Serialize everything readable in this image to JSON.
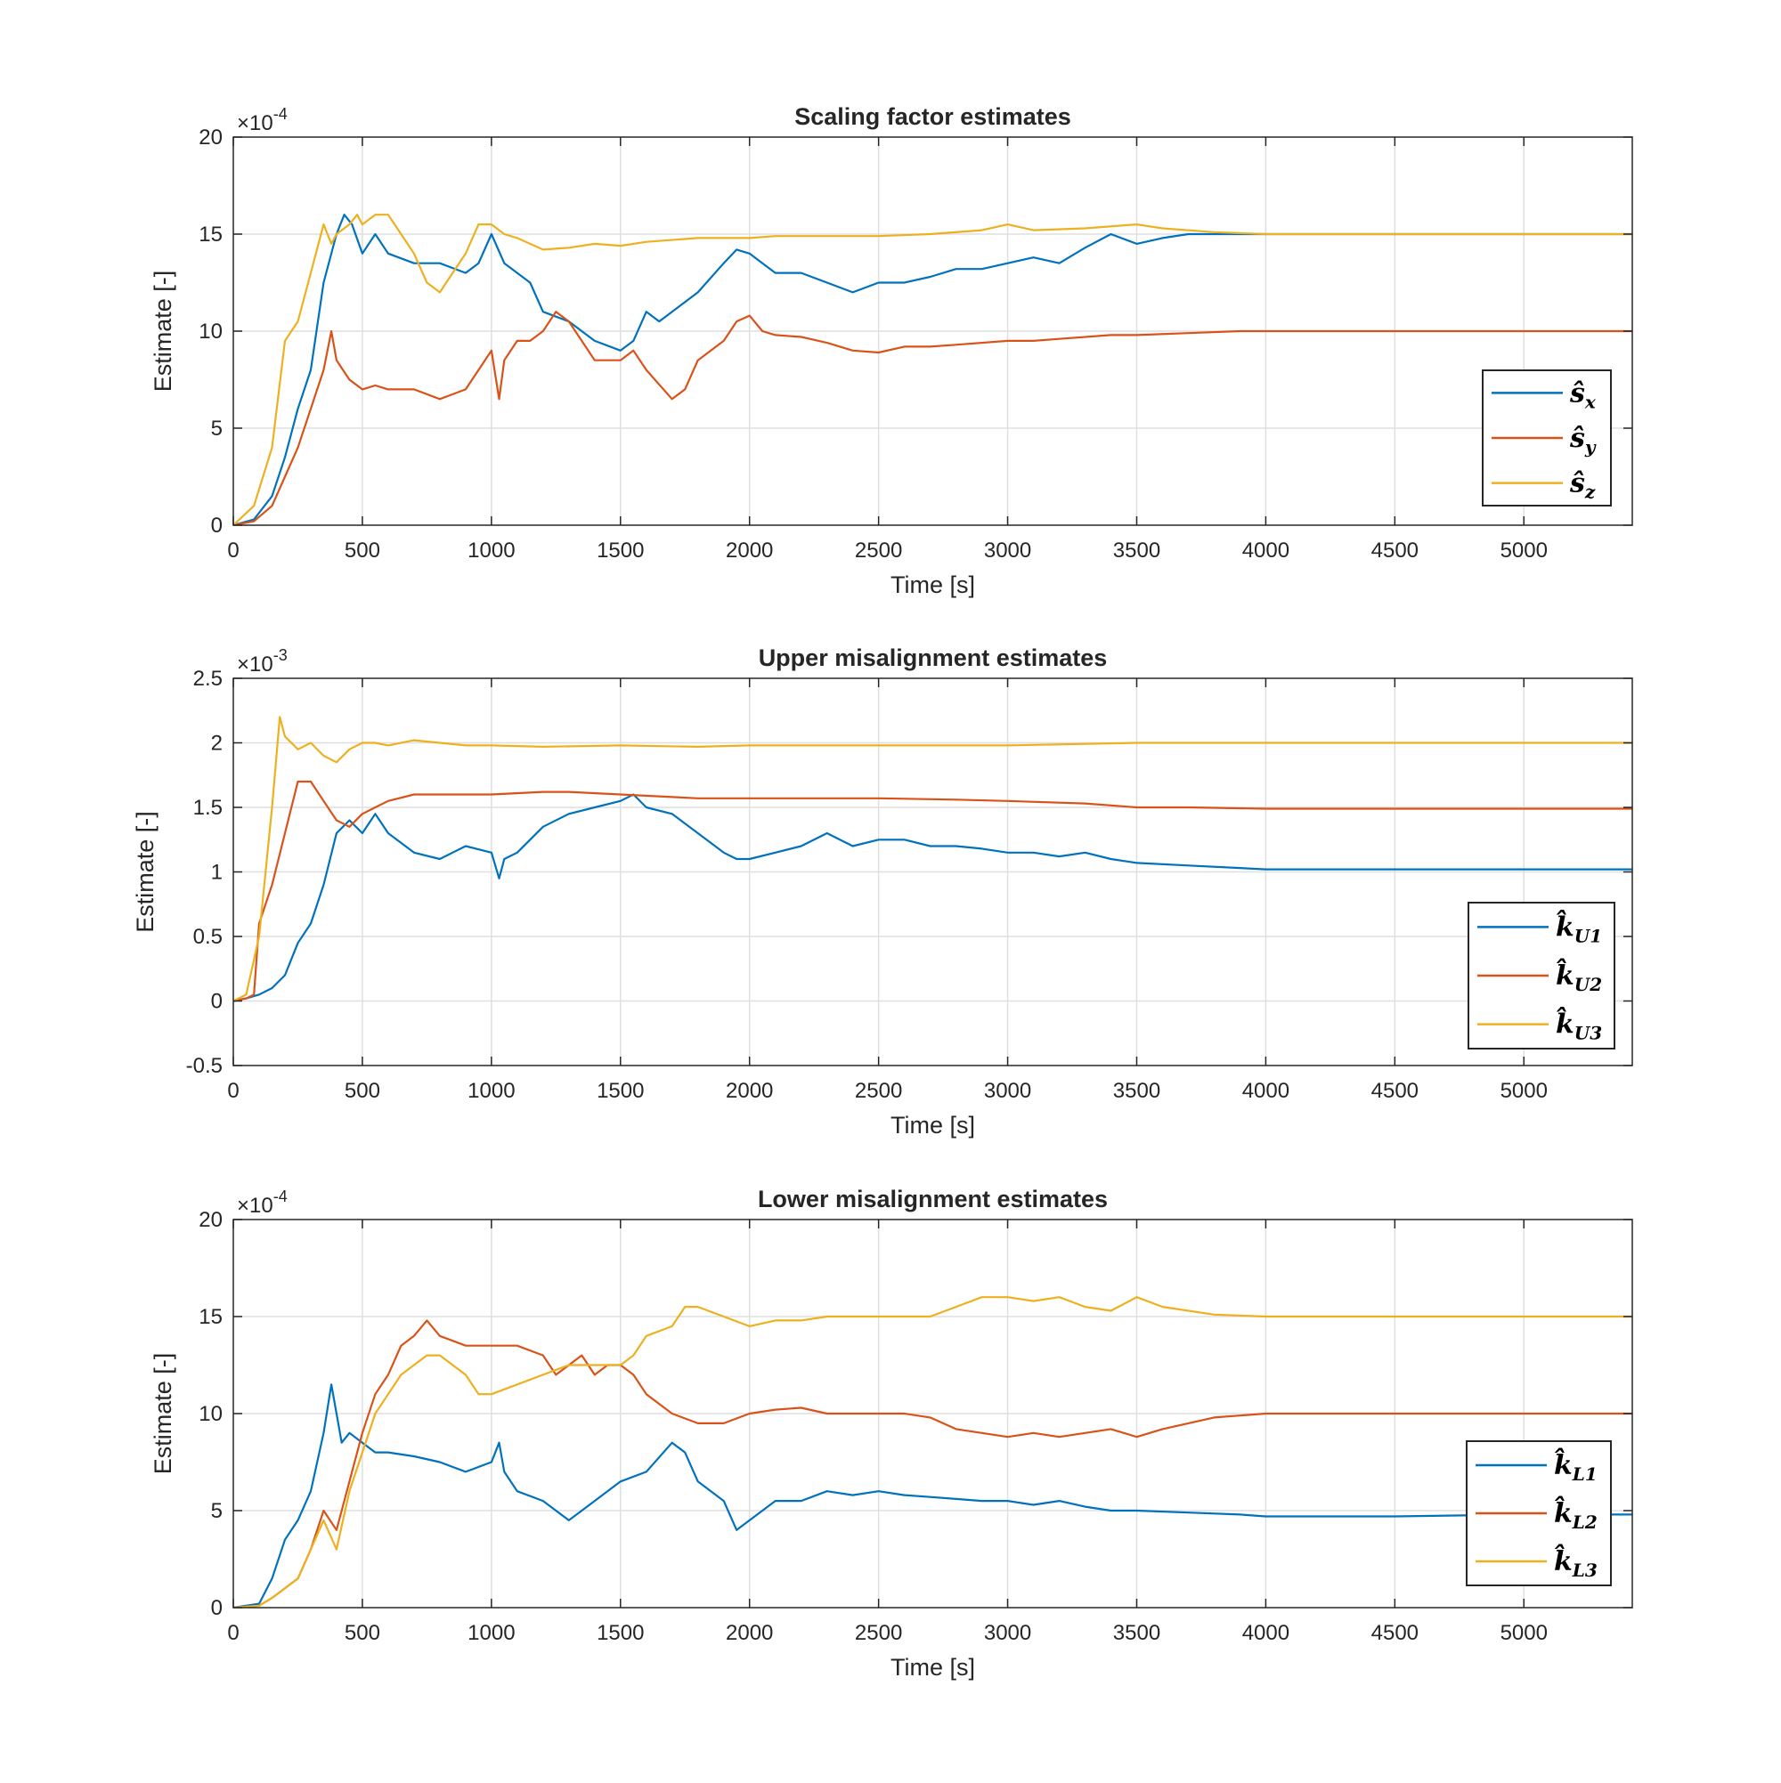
{
  "chart_data": [
    {
      "type": "line",
      "title": "Scaling factor estimates",
      "xlabel": "Time [s]",
      "ylabel": "Estimate [-]",
      "y_exponent_label": "10",
      "y_exponent": "-4",
      "xlim": [
        0,
        5420
      ],
      "ylim": [
        0,
        20
      ],
      "xticks": [
        "0",
        "500",
        "1000",
        "1500",
        "2000",
        "2500",
        "3000",
        "3500",
        "4000",
        "4500",
        "5000"
      ],
      "yticks": [
        "0",
        "5",
        "10",
        "15",
        "20"
      ],
      "grid": true,
      "legend_position": "right",
      "legend": [
        {
          "base": "ŝ",
          "sub": "x"
        },
        {
          "base": "ŝ",
          "sub": "y"
        },
        {
          "base": "ŝ",
          "sub": "z"
        }
      ],
      "series": [
        {
          "color": "#0072BD",
          "x": [
            0,
            80,
            150,
            200,
            250,
            300,
            350,
            400,
            430,
            460,
            500,
            550,
            600,
            700,
            800,
            900,
            950,
            1000,
            1050,
            1100,
            1150,
            1200,
            1300,
            1400,
            1500,
            1550,
            1600,
            1650,
            1700,
            1800,
            1900,
            1950,
            2000,
            2050,
            2100,
            2200,
            2300,
            2400,
            2500,
            2600,
            2700,
            2800,
            2900,
            3000,
            3100,
            3200,
            3300,
            3400,
            3500,
            3600,
            3700,
            3800,
            4000,
            4200,
            4500,
            5000,
            5420
          ],
          "y": [
            0,
            0.3,
            1.5,
            3.5,
            6,
            8,
            12.5,
            15,
            16,
            15.5,
            14,
            15,
            14,
            13.5,
            13.5,
            13,
            13.5,
            15,
            13.5,
            13,
            12.5,
            11,
            10.5,
            9.5,
            9,
            9.5,
            11,
            10.5,
            11,
            12,
            13.5,
            14.2,
            14,
            13.5,
            13,
            13,
            12.5,
            12,
            12.5,
            12.5,
            12.8,
            13.2,
            13.2,
            13.5,
            13.8,
            13.5,
            14.3,
            15,
            14.5,
            14.8,
            15,
            15,
            15,
            15,
            15,
            15,
            15
          ]
        },
        {
          "color": "#D95319",
          "x": [
            0,
            80,
            150,
            200,
            250,
            300,
            350,
            380,
            400,
            450,
            500,
            550,
            600,
            700,
            800,
            900,
            950,
            1000,
            1030,
            1050,
            1100,
            1150,
            1200,
            1250,
            1300,
            1350,
            1400,
            1500,
            1550,
            1600,
            1700,
            1750,
            1800,
            1900,
            1950,
            2000,
            2050,
            2100,
            2200,
            2300,
            2400,
            2500,
            2600,
            2700,
            2800,
            3000,
            3100,
            3200,
            3400,
            3500,
            3700,
            3900,
            4000,
            4500,
            5000,
            5420
          ],
          "y": [
            0,
            0.2,
            1,
            2.5,
            4,
            6,
            8,
            10,
            8.5,
            7.5,
            7,
            7.2,
            7,
            7,
            6.5,
            7,
            8,
            9,
            6.5,
            8.5,
            9.5,
            9.5,
            10,
            11,
            10.5,
            9.5,
            8.5,
            8.5,
            9,
            8,
            6.5,
            7,
            8.5,
            9.5,
            10.5,
            10.8,
            10,
            9.8,
            9.7,
            9.4,
            9,
            8.9,
            9.2,
            9.2,
            9.3,
            9.5,
            9.5,
            9.6,
            9.8,
            9.8,
            9.9,
            10,
            10,
            10,
            10,
            10
          ]
        },
        {
          "color": "#EDB120",
          "x": [
            0,
            80,
            150,
            200,
            250,
            300,
            350,
            380,
            400,
            450,
            480,
            500,
            550,
            600,
            700,
            750,
            800,
            850,
            900,
            950,
            1000,
            1050,
            1100,
            1150,
            1200,
            1300,
            1400,
            1500,
            1600,
            1800,
            2000,
            2100,
            2300,
            2500,
            2700,
            2900,
            3000,
            3100,
            3300,
            3500,
            3600,
            3800,
            4000,
            4500,
            5000,
            5420
          ],
          "y": [
            0,
            1,
            4,
            9.5,
            10.5,
            13,
            15.5,
            14.5,
            15,
            15.5,
            16,
            15.5,
            16,
            16,
            14,
            12.5,
            12,
            13,
            14,
            15.5,
            15.5,
            15,
            14.8,
            14.5,
            14.2,
            14.3,
            14.5,
            14.4,
            14.6,
            14.8,
            14.8,
            14.9,
            14.9,
            14.9,
            15,
            15.2,
            15.5,
            15.2,
            15.3,
            15.5,
            15.3,
            15.1,
            15,
            15,
            15,
            15
          ]
        }
      ]
    },
    {
      "type": "line",
      "title": "Upper misalignment estimates",
      "xlabel": "Time [s]",
      "ylabel": "Estimate [-]",
      "y_exponent_label": "10",
      "y_exponent": "-3",
      "xlim": [
        0,
        5420
      ],
      "ylim": [
        -0.5,
        2.5
      ],
      "xticks": [
        "0",
        "500",
        "1000",
        "1500",
        "2000",
        "2500",
        "3000",
        "3500",
        "4000",
        "4500",
        "5000"
      ],
      "yticks": [
        "-0.5",
        "0",
        "0.5",
        "1",
        "1.5",
        "2",
        "2.5"
      ],
      "grid": true,
      "legend_position": "right",
      "legend": [
        {
          "base": "k̂",
          "sub": "U1"
        },
        {
          "base": "k̂",
          "sub": "U2"
        },
        {
          "base": "k̂",
          "sub": "U3"
        }
      ],
      "series": [
        {
          "color": "#0072BD",
          "x": [
            0,
            50,
            100,
            150,
            200,
            250,
            300,
            350,
            400,
            450,
            500,
            550,
            600,
            700,
            800,
            900,
            1000,
            1030,
            1050,
            1100,
            1150,
            1200,
            1300,
            1400,
            1500,
            1550,
            1600,
            1700,
            1800,
            1900,
            1950,
            2000,
            2100,
            2200,
            2300,
            2400,
            2500,
            2600,
            2700,
            2800,
            2900,
            3000,
            3100,
            3200,
            3300,
            3400,
            3500,
            3700,
            3900,
            4000,
            4500,
            5000,
            5420
          ],
          "y": [
            0,
            0.02,
            0.05,
            0.1,
            0.2,
            0.45,
            0.6,
            0.9,
            1.3,
            1.4,
            1.3,
            1.45,
            1.3,
            1.15,
            1.1,
            1.2,
            1.15,
            0.95,
            1.1,
            1.15,
            1.25,
            1.35,
            1.45,
            1.5,
            1.55,
            1.6,
            1.5,
            1.45,
            1.3,
            1.15,
            1.1,
            1.1,
            1.15,
            1.2,
            1.3,
            1.2,
            1.25,
            1.25,
            1.2,
            1.2,
            1.18,
            1.15,
            1.15,
            1.12,
            1.15,
            1.1,
            1.07,
            1.05,
            1.03,
            1.02,
            1.02,
            1.02,
            1.02
          ]
        },
        {
          "color": "#D95319",
          "x": [
            0,
            50,
            80,
            100,
            150,
            200,
            250,
            300,
            350,
            400,
            450,
            500,
            550,
            600,
            700,
            800,
            1000,
            1200,
            1300,
            1500,
            1800,
            2000,
            2200,
            2500,
            2800,
            3000,
            3300,
            3500,
            3700,
            4000,
            4500,
            5000,
            5420
          ],
          "y": [
            0,
            0.02,
            0.05,
            0.6,
            0.9,
            1.3,
            1.7,
            1.7,
            1.55,
            1.4,
            1.35,
            1.45,
            1.5,
            1.55,
            1.6,
            1.6,
            1.6,
            1.62,
            1.62,
            1.6,
            1.57,
            1.57,
            1.57,
            1.57,
            1.56,
            1.55,
            1.53,
            1.5,
            1.5,
            1.49,
            1.49,
            1.49,
            1.49
          ]
        },
        {
          "color": "#EDB120",
          "x": [
            0,
            50,
            100,
            150,
            180,
            200,
            250,
            300,
            350,
            400,
            450,
            500,
            550,
            600,
            700,
            800,
            900,
            1000,
            1200,
            1500,
            1800,
            2000,
            2500,
            3000,
            3500,
            4000,
            4500,
            5000,
            5420
          ],
          "y": [
            0,
            0.05,
            0.5,
            1.5,
            2.2,
            2.05,
            1.95,
            2,
            1.9,
            1.85,
            1.95,
            2,
            2,
            1.98,
            2.02,
            2,
            1.98,
            1.98,
            1.97,
            1.98,
            1.97,
            1.98,
            1.98,
            1.98,
            2,
            2,
            2,
            2,
            2
          ]
        }
      ]
    },
    {
      "type": "line",
      "title": "Lower misalignment estimates",
      "xlabel": "Time [s]",
      "ylabel": "Estimate [-]",
      "y_exponent_label": "10",
      "y_exponent": "-4",
      "xlim": [
        0,
        5420
      ],
      "ylim": [
        0,
        20
      ],
      "xticks": [
        "0",
        "500",
        "1000",
        "1500",
        "2000",
        "2500",
        "3000",
        "3500",
        "4000",
        "4500",
        "5000"
      ],
      "yticks": [
        "0",
        "5",
        "10",
        "15",
        "20"
      ],
      "grid": true,
      "legend_position": "right",
      "legend": [
        {
          "base": "k̂",
          "sub": "L1"
        },
        {
          "base": "k̂",
          "sub": "L2"
        },
        {
          "base": "k̂",
          "sub": "L3"
        }
      ],
      "series": [
        {
          "color": "#0072BD",
          "x": [
            0,
            100,
            150,
            200,
            250,
            300,
            350,
            380,
            400,
            420,
            450,
            500,
            550,
            600,
            700,
            800,
            900,
            1000,
            1030,
            1050,
            1100,
            1200,
            1300,
            1400,
            1500,
            1600,
            1700,
            1750,
            1800,
            1900,
            1950,
            2000,
            2100,
            2200,
            2300,
            2400,
            2500,
            2600,
            2700,
            2800,
            2900,
            3000,
            3100,
            3200,
            3300,
            3400,
            3500,
            3700,
            3900,
            4000,
            4500,
            5000,
            5420
          ],
          "y": [
            0,
            0.2,
            1.5,
            3.5,
            4.5,
            6,
            9,
            11.5,
            10,
            8.5,
            9,
            8.5,
            8,
            8,
            7.8,
            7.5,
            7,
            7.5,
            8.5,
            7,
            6,
            5.5,
            4.5,
            5.5,
            6.5,
            7,
            8.5,
            8,
            6.5,
            5.5,
            4,
            4.5,
            5.5,
            5.5,
            6,
            5.8,
            6,
            5.8,
            5.7,
            5.6,
            5.5,
            5.5,
            5.3,
            5.5,
            5.2,
            5,
            5,
            4.9,
            4.8,
            4.7,
            4.7,
            4.8,
            4.8
          ]
        },
        {
          "color": "#D95319",
          "x": [
            0,
            100,
            150,
            200,
            250,
            300,
            350,
            400,
            450,
            500,
            550,
            600,
            650,
            700,
            750,
            800,
            900,
            1000,
            1100,
            1200,
            1250,
            1300,
            1350,
            1400,
            1450,
            1500,
            1550,
            1600,
            1700,
            1800,
            1900,
            2000,
            2100,
            2200,
            2300,
            2400,
            2500,
            2600,
            2700,
            2800,
            2900,
            3000,
            3100,
            3200,
            3300,
            3400,
            3500,
            3600,
            3700,
            3800,
            3900,
            4000,
            4500,
            5000,
            5420
          ],
          "y": [
            0,
            0.1,
            0.5,
            1,
            1.5,
            3,
            5,
            4,
            6.5,
            9,
            11,
            12,
            13.5,
            14,
            14.8,
            14,
            13.5,
            13.5,
            13.5,
            13,
            12,
            12.5,
            13,
            12,
            12.5,
            12.5,
            12,
            11,
            10,
            9.5,
            9.5,
            10,
            10.2,
            10.3,
            10,
            10,
            10,
            10,
            9.8,
            9.2,
            9,
            8.8,
            9,
            8.8,
            9,
            9.2,
            8.8,
            9.2,
            9.5,
            9.8,
            9.9,
            10,
            10,
            10,
            10
          ]
        },
        {
          "color": "#EDB120",
          "x": [
            0,
            100,
            150,
            200,
            250,
            300,
            350,
            400,
            450,
            500,
            550,
            600,
            650,
            700,
            750,
            800,
            850,
            900,
            950,
            1000,
            1100,
            1200,
            1300,
            1400,
            1500,
            1550,
            1600,
            1700,
            1750,
            1800,
            1900,
            2000,
            2100,
            2200,
            2300,
            2500,
            2700,
            2800,
            2900,
            3000,
            3100,
            3200,
            3300,
            3400,
            3500,
            3600,
            3800,
            4000,
            4500,
            5000,
            5420
          ],
          "y": [
            0,
            0.1,
            0.5,
            1,
            1.5,
            3,
            4.5,
            3,
            6,
            8,
            10,
            11,
            12,
            12.5,
            13,
            13,
            12.5,
            12,
            11,
            11,
            11.5,
            12,
            12.5,
            12.5,
            12.5,
            13,
            14,
            14.5,
            15.5,
            15.5,
            15,
            14.5,
            14.8,
            14.8,
            15,
            15,
            15,
            15.5,
            16,
            16,
            15.8,
            16,
            15.5,
            15.3,
            16,
            15.5,
            15.1,
            15,
            15,
            15,
            15
          ]
        }
      ]
    }
  ]
}
